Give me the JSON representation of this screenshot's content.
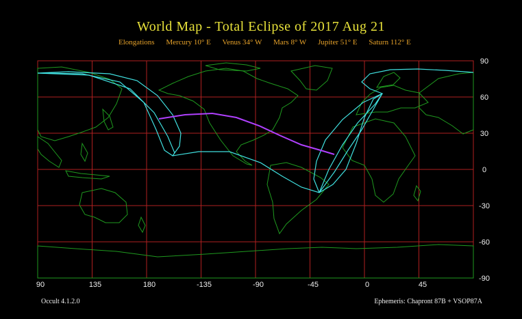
{
  "title": "World Map  -  Total Eclipse  of  2017 Aug 21",
  "elongations": {
    "label": "Elongations",
    "items": [
      "Mercury 10° E",
      "Venus 34° W",
      "Mars 8° W",
      "Jupiter 51° E",
      "Saturn 112° E"
    ]
  },
  "map": {
    "lon_ticks": [
      "90",
      "135",
      "180",
      "-135",
      "-90",
      "-45",
      "0",
      "45"
    ],
    "lat_ticks": [
      "90",
      "60",
      "30",
      "0",
      "-30",
      "-60",
      "-90"
    ]
  },
  "footer": {
    "version": "Occult 4.1.2.0",
    "ephemeris": "Ephemeris: Chapront 87B + VSOP87A"
  },
  "colors": {
    "grid": "#b02020",
    "coast": "#1f9a1f",
    "shadow_limits": "#40e0e0",
    "central_line": "#b040ff",
    "title": "#e8e23a",
    "elongations": "#e8a32a"
  }
}
